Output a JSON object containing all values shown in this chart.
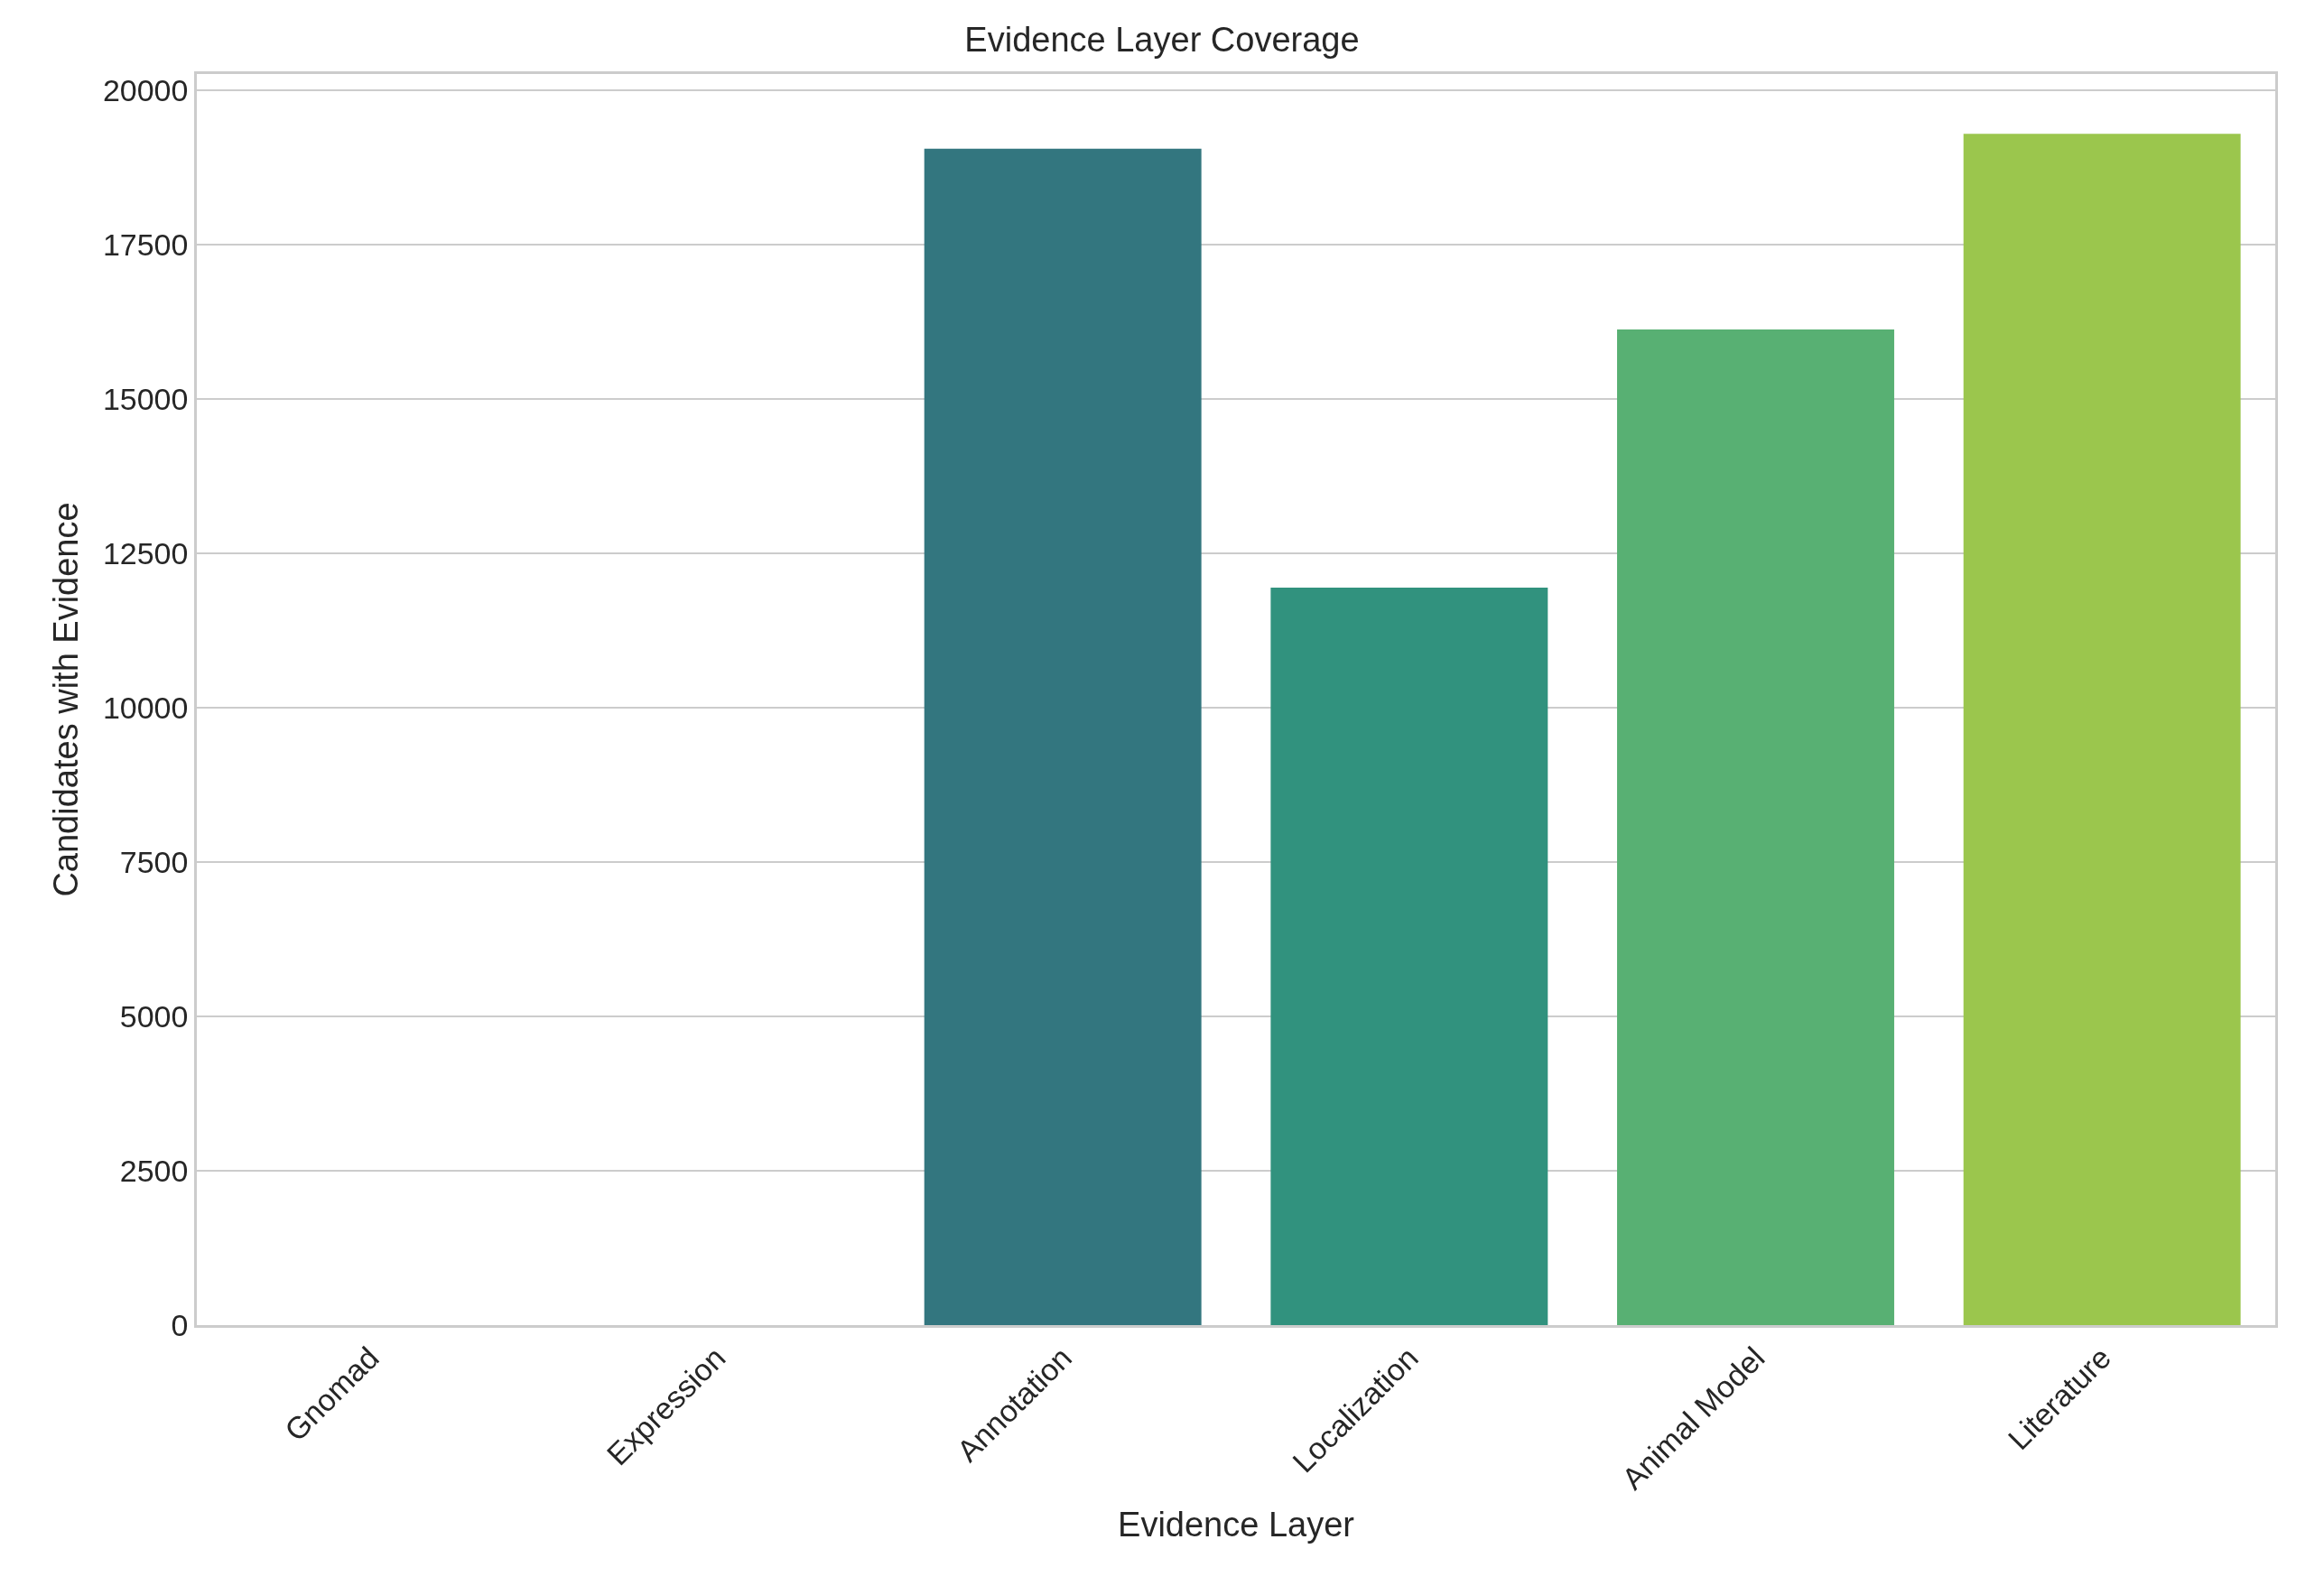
{
  "chart_data": {
    "type": "bar",
    "title": "Evidence Layer Coverage",
    "xlabel": "Evidence Layer",
    "ylabel": "Candidates with Evidence",
    "categories": [
      "Gnomad",
      "Expression",
      "Annotation",
      "Localization",
      "Animal Model",
      "Literature"
    ],
    "values": [
      0,
      0,
      19060,
      11950,
      16130,
      19300
    ],
    "colors": [
      "#4a3a7a",
      "#3c5e88",
      "#33767f",
      "#31927e",
      "#58b073",
      "#9bc64d"
    ],
    "ylim": [
      0,
      20270
    ],
    "yticks": [
      0,
      2500,
      5000,
      7500,
      10000,
      12500,
      15000,
      17500,
      20000
    ],
    "grid": "y"
  }
}
